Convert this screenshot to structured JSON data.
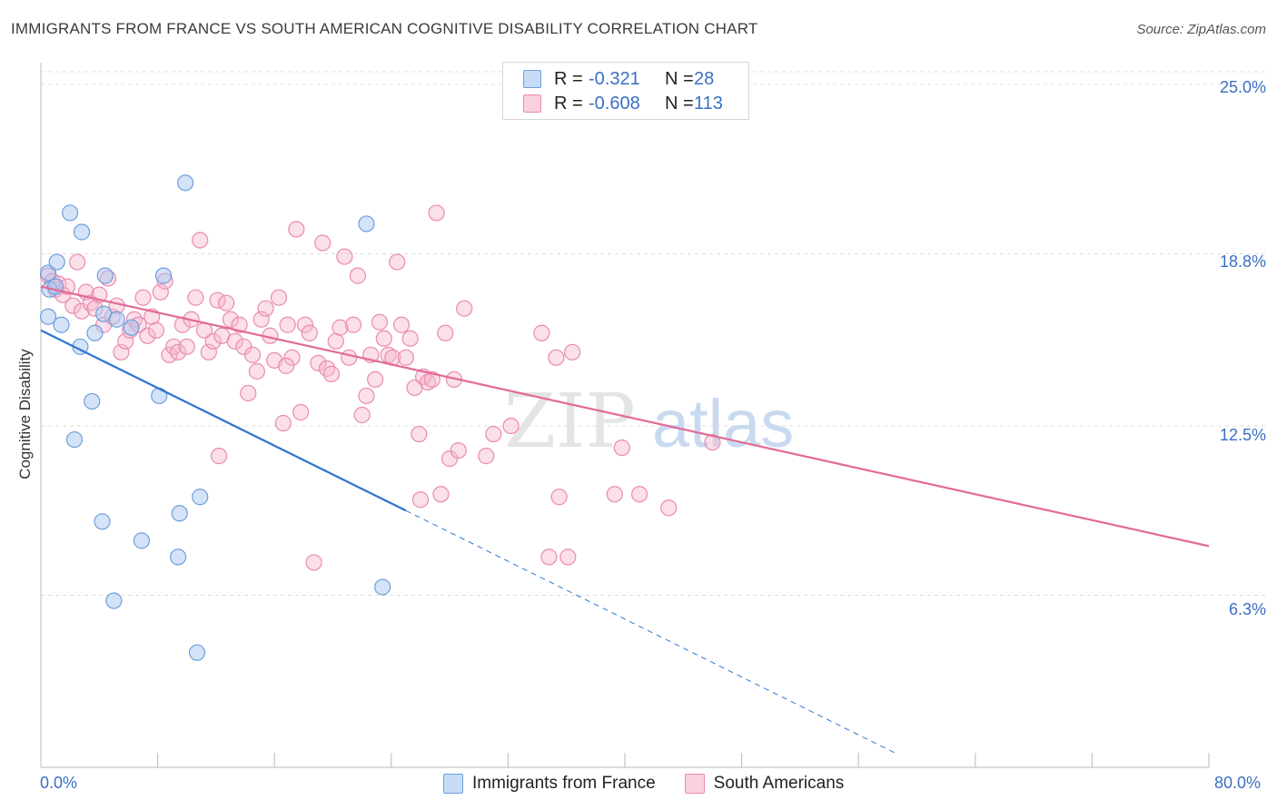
{
  "header": {
    "title": "IMMIGRANTS FROM FRANCE VS SOUTH AMERICAN COGNITIVE DISABILITY CORRELATION CHART",
    "source": "Source: ZipAtlas.com"
  },
  "legend_top": {
    "rows": [
      {
        "r_label": "R =",
        "r_value": "-0.321",
        "n_label": "N =",
        "n_value": "28"
      },
      {
        "r_label": "R =",
        "r_value": "-0.608",
        "n_label": "N =",
        "n_value": "113"
      }
    ]
  },
  "watermark": {
    "part1": "ZIP",
    "part2": "atlas"
  },
  "colors": {
    "france_fill": "#a9c8f0",
    "france_stroke": "#6f9fdc",
    "france_line": "#2f74d0",
    "sa_fill": "#f6b9cf",
    "sa_stroke": "#e98bb0",
    "sa_line": "#e26a97",
    "grid": "#dcdcdc",
    "tick_text": "#3a6fc4"
  },
  "chart_data": {
    "type": "scatter",
    "title": "IMMIGRANTS FROM FRANCE VS SOUTH AMERICAN COGNITIVE DISABILITY CORRELATION CHART",
    "xlabel": "",
    "ylabel": "Cognitive Disability",
    "xlim": [
      0,
      80
    ],
    "ylim": [
      0,
      25.8
    ],
    "x_tick_labels": [
      "0.0%",
      "80.0%"
    ],
    "y_ticks": [
      6.3,
      12.5,
      18.8,
      25.0
    ],
    "y_tick_labels": [
      "6.3%",
      "12.5%",
      "18.8%",
      "25.0%"
    ],
    "grid": true,
    "legend_position": "top-center",
    "series": [
      {
        "name": "Immigrants from France",
        "r": -0.321,
        "n": 28,
        "points": [
          [
            0.5,
            18.1
          ],
          [
            0.6,
            17.5
          ],
          [
            0.5,
            16.5
          ],
          [
            1.1,
            18.5
          ],
          [
            1.4,
            16.2
          ],
          [
            2.0,
            20.3
          ],
          [
            2.8,
            19.6
          ],
          [
            3.5,
            13.4
          ],
          [
            2.3,
            12.0
          ],
          [
            2.7,
            15.4
          ],
          [
            3.7,
            15.9
          ],
          [
            4.3,
            16.6
          ],
          [
            4.4,
            18.0
          ],
          [
            5.2,
            16.4
          ],
          [
            6.2,
            16.1
          ],
          [
            8.4,
            18.0
          ],
          [
            8.1,
            13.6
          ],
          [
            9.9,
            21.4
          ],
          [
            4.2,
            9.0
          ],
          [
            5.0,
            6.1
          ],
          [
            6.9,
            8.3
          ],
          [
            9.5,
            9.3
          ],
          [
            9.4,
            7.7
          ],
          [
            10.9,
            9.9
          ],
          [
            10.7,
            4.2
          ],
          [
            22.3,
            19.9
          ],
          [
            23.4,
            6.6
          ],
          [
            1.0,
            17.6
          ]
        ],
        "trend": {
          "x": [
            0,
            25
          ],
          "y": [
            16.0,
            9.4
          ],
          "dashed_to": {
            "x": 58.6,
            "y": 0.5
          }
        }
      },
      {
        "name": "South Americans",
        "r": -0.608,
        "n": 113,
        "points": [
          [
            0.5,
            18.0
          ],
          [
            0.8,
            17.8
          ],
          [
            1.0,
            17.5
          ],
          [
            1.2,
            17.7
          ],
          [
            1.5,
            17.3
          ],
          [
            1.8,
            17.6
          ],
          [
            2.2,
            16.9
          ],
          [
            2.5,
            18.5
          ],
          [
            2.8,
            16.7
          ],
          [
            3.1,
            17.4
          ],
          [
            3.4,
            17.0
          ],
          [
            3.7,
            16.8
          ],
          [
            4.0,
            17.3
          ],
          [
            4.3,
            16.2
          ],
          [
            4.6,
            17.9
          ],
          [
            4.9,
            16.5
          ],
          [
            5.2,
            16.9
          ],
          [
            5.5,
            15.2
          ],
          [
            5.8,
            15.6
          ],
          [
            6.1,
            16.0
          ],
          [
            6.4,
            16.4
          ],
          [
            6.7,
            16.2
          ],
          [
            7.0,
            17.2
          ],
          [
            7.3,
            15.8
          ],
          [
            7.6,
            16.5
          ],
          [
            7.9,
            16.0
          ],
          [
            8.2,
            17.4
          ],
          [
            8.5,
            17.8
          ],
          [
            8.8,
            15.1
          ],
          [
            9.1,
            15.4
          ],
          [
            9.4,
            15.2
          ],
          [
            9.7,
            16.2
          ],
          [
            10.0,
            15.4
          ],
          [
            10.3,
            16.4
          ],
          [
            10.6,
            17.2
          ],
          [
            10.9,
            19.3
          ],
          [
            11.2,
            16.0
          ],
          [
            11.5,
            15.2
          ],
          [
            11.8,
            15.6
          ],
          [
            12.1,
            17.1
          ],
          [
            12.4,
            15.8
          ],
          [
            12.7,
            17.0
          ],
          [
            13.0,
            16.4
          ],
          [
            13.3,
            15.6
          ],
          [
            13.6,
            16.2
          ],
          [
            13.9,
            15.4
          ],
          [
            14.2,
            13.7
          ],
          [
            14.5,
            15.1
          ],
          [
            14.8,
            14.5
          ],
          [
            15.1,
            16.4
          ],
          [
            15.4,
            16.8
          ],
          [
            15.7,
            15.8
          ],
          [
            16.0,
            14.9
          ],
          [
            16.3,
            17.2
          ],
          [
            16.6,
            12.6
          ],
          [
            16.9,
            16.2
          ],
          [
            17.2,
            15.0
          ],
          [
            17.5,
            19.7
          ],
          [
            17.8,
            13.0
          ],
          [
            18.1,
            16.2
          ],
          [
            18.4,
            15.9
          ],
          [
            18.7,
            7.5
          ],
          [
            19.0,
            14.8
          ],
          [
            19.3,
            19.2
          ],
          [
            19.6,
            14.6
          ],
          [
            19.9,
            14.4
          ],
          [
            20.2,
            15.6
          ],
          [
            20.5,
            16.1
          ],
          [
            20.8,
            18.7
          ],
          [
            21.1,
            15.0
          ],
          [
            21.4,
            16.2
          ],
          [
            21.7,
            18.0
          ],
          [
            22.0,
            12.9
          ],
          [
            22.3,
            13.6
          ],
          [
            22.6,
            15.1
          ],
          [
            22.9,
            14.2
          ],
          [
            23.2,
            16.3
          ],
          [
            23.5,
            15.7
          ],
          [
            23.8,
            15.1
          ],
          [
            24.1,
            15.0
          ],
          [
            24.4,
            18.5
          ],
          [
            24.7,
            16.2
          ],
          [
            25.0,
            15.0
          ],
          [
            25.3,
            15.7
          ],
          [
            25.6,
            13.9
          ],
          [
            25.9,
            12.2
          ],
          [
            26.2,
            14.3
          ],
          [
            26.5,
            14.1
          ],
          [
            26.8,
            14.2
          ],
          [
            27.1,
            20.3
          ],
          [
            27.4,
            10.0
          ],
          [
            27.7,
            15.9
          ],
          [
            28.0,
            11.3
          ],
          [
            28.3,
            14.2
          ],
          [
            28.6,
            11.6
          ],
          [
            29.0,
            16.8
          ],
          [
            30.5,
            11.4
          ],
          [
            31.0,
            12.2
          ],
          [
            34.3,
            15.9
          ],
          [
            34.8,
            7.7
          ],
          [
            35.3,
            15.0
          ],
          [
            35.5,
            9.9
          ],
          [
            36.1,
            7.7
          ],
          [
            36.4,
            15.2
          ],
          [
            39.3,
            10.0
          ],
          [
            39.8,
            11.7
          ],
          [
            41.0,
            10.0
          ],
          [
            43.0,
            9.5
          ],
          [
            46.0,
            11.9
          ],
          [
            32.2,
            12.5
          ],
          [
            26.0,
            9.8
          ],
          [
            16.8,
            14.7
          ],
          [
            12.2,
            11.4
          ]
        ],
        "trend": {
          "x": [
            0,
            80
          ],
          "y": [
            17.6,
            8.1
          ]
        }
      }
    ]
  },
  "axes": {
    "ylabel": "Cognitive Disability",
    "x_tick_left": "0.0%",
    "x_tick_right": "80.0%",
    "y_tick_labels": [
      "25.0%",
      "18.8%",
      "12.5%",
      "6.3%"
    ]
  },
  "legend_bottom": {
    "items": [
      {
        "label": "Immigrants from France"
      },
      {
        "label": "South Americans"
      }
    ]
  }
}
